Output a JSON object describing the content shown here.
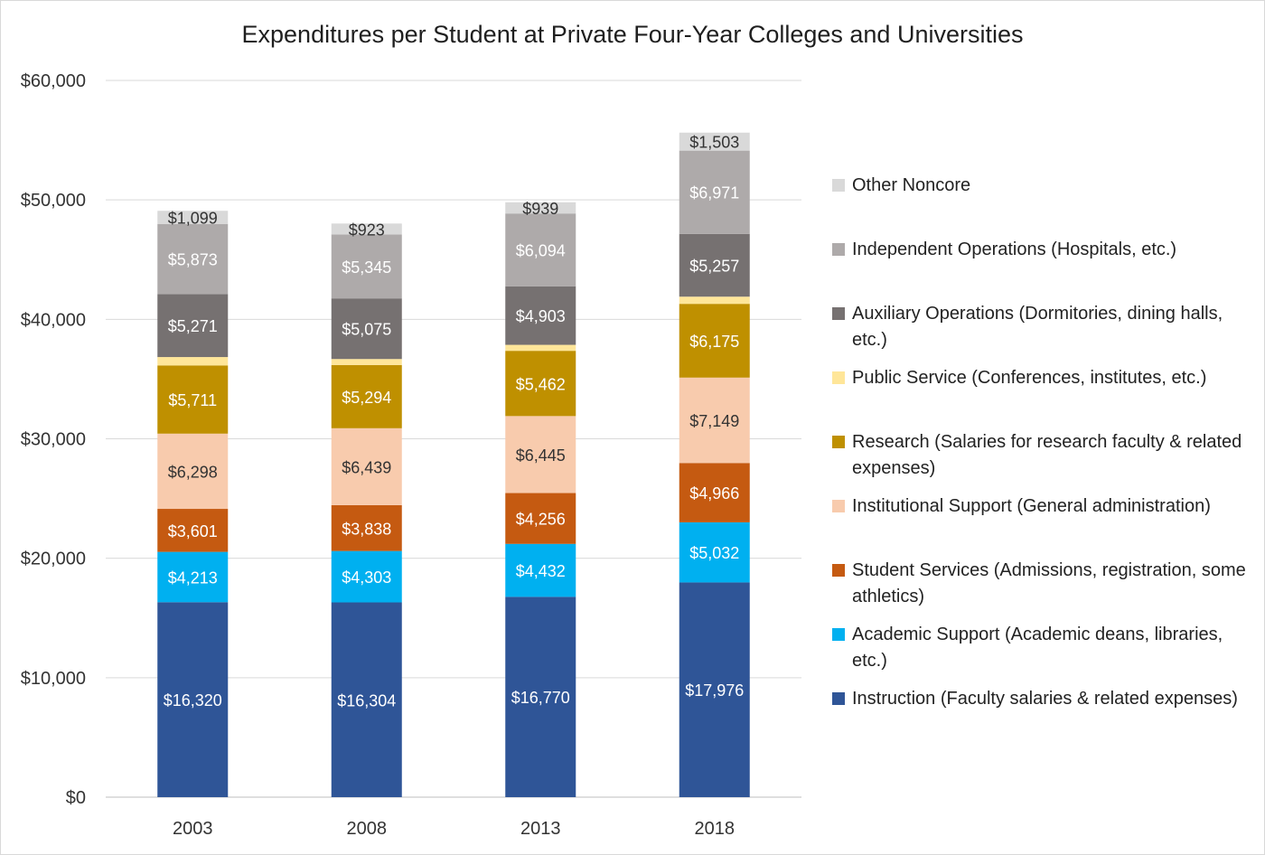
{
  "chart_data": {
    "type": "bar",
    "stacked": true,
    "title": "Expenditures per Student at Private Four-Year Colleges and Universities",
    "xlabel": "",
    "ylabel": "",
    "ylim": [
      0,
      60000
    ],
    "yticks": [
      0,
      10000,
      20000,
      30000,
      40000,
      50000,
      60000
    ],
    "ytick_labels": [
      "$0",
      "$10,000",
      "$20,000",
      "$30,000",
      "$40,000",
      "$50,000",
      "$60,000"
    ],
    "grid": true,
    "legend_position": "right",
    "categories": [
      "2003",
      "2008",
      "2013",
      "2018"
    ],
    "series": [
      {
        "name": "Instruction (Faculty salaries & related expenses)",
        "color": "#2f5597",
        "label_color": "#ffffff",
        "values": [
          16320,
          16304,
          16770,
          17976
        ],
        "labels": [
          "$16,320",
          "$16,304",
          "$16,770",
          "$17,976"
        ]
      },
      {
        "name": "Academic Support (Academic deans, libraries, etc.)",
        "color": "#00b0f0",
        "label_color": "#ffffff",
        "values": [
          4213,
          4303,
          4432,
          5032
        ],
        "labels": [
          "$4,213",
          "$4,303",
          "$4,432",
          "$5,032"
        ]
      },
      {
        "name": "Student Services (Admissions, registration, some athletics)",
        "color": "#c55a11",
        "label_color": "#ffffff",
        "values": [
          3601,
          3838,
          4256,
          4966
        ],
        "labels": [
          "$3,601",
          "$3,838",
          "$4,256",
          "$4,966"
        ]
      },
      {
        "name": "Institutional Support (General administration)",
        "color": "#f8cbad",
        "label_color": "#333333",
        "values": [
          6298,
          6439,
          6445,
          7149
        ],
        "labels": [
          "$6,298",
          "$6,439",
          "$6,445",
          "$7,149"
        ]
      },
      {
        "name": "Research (Salaries for research faculty & related expenses)",
        "color": "#bf9000",
        "label_color": "#ffffff",
        "values": [
          5711,
          5294,
          5462,
          6175
        ],
        "labels": [
          "$5,711",
          "$5,294",
          "$5,462",
          "$6,175"
        ]
      },
      {
        "name": "Public Service (Conferences, institutes, etc.)",
        "color": "#ffe699",
        "label_color": "#333333",
        "values": [
          700,
          500,
          500,
          600
        ],
        "labels": [
          "",
          "",
          "",
          ""
        ]
      },
      {
        "name": "Auxiliary Operations (Dormitories, dining halls, etc.)",
        "color": "#767171",
        "label_color": "#ffffff",
        "values": [
          5271,
          5075,
          4903,
          5257
        ],
        "labels": [
          "$5,271",
          "$5,075",
          "$4,903",
          "$5,257"
        ]
      },
      {
        "name": "Independent Operations (Hospitals, etc.)",
        "color": "#aeaaaa",
        "label_color": "#ffffff",
        "values": [
          5873,
          5345,
          6094,
          6971
        ],
        "labels": [
          "$5,873",
          "$5,345",
          "$6,094",
          "$6,971"
        ]
      },
      {
        "name": "Other Noncore",
        "color": "#d9d9d9",
        "label_color": "#333333",
        "values": [
          1099,
          923,
          939,
          1503
        ],
        "labels": [
          "$1,099",
          "$923",
          "$939",
          "$1,503"
        ]
      }
    ],
    "legend_order": [
      8,
      7,
      6,
      5,
      4,
      3,
      2,
      1,
      0
    ]
  }
}
